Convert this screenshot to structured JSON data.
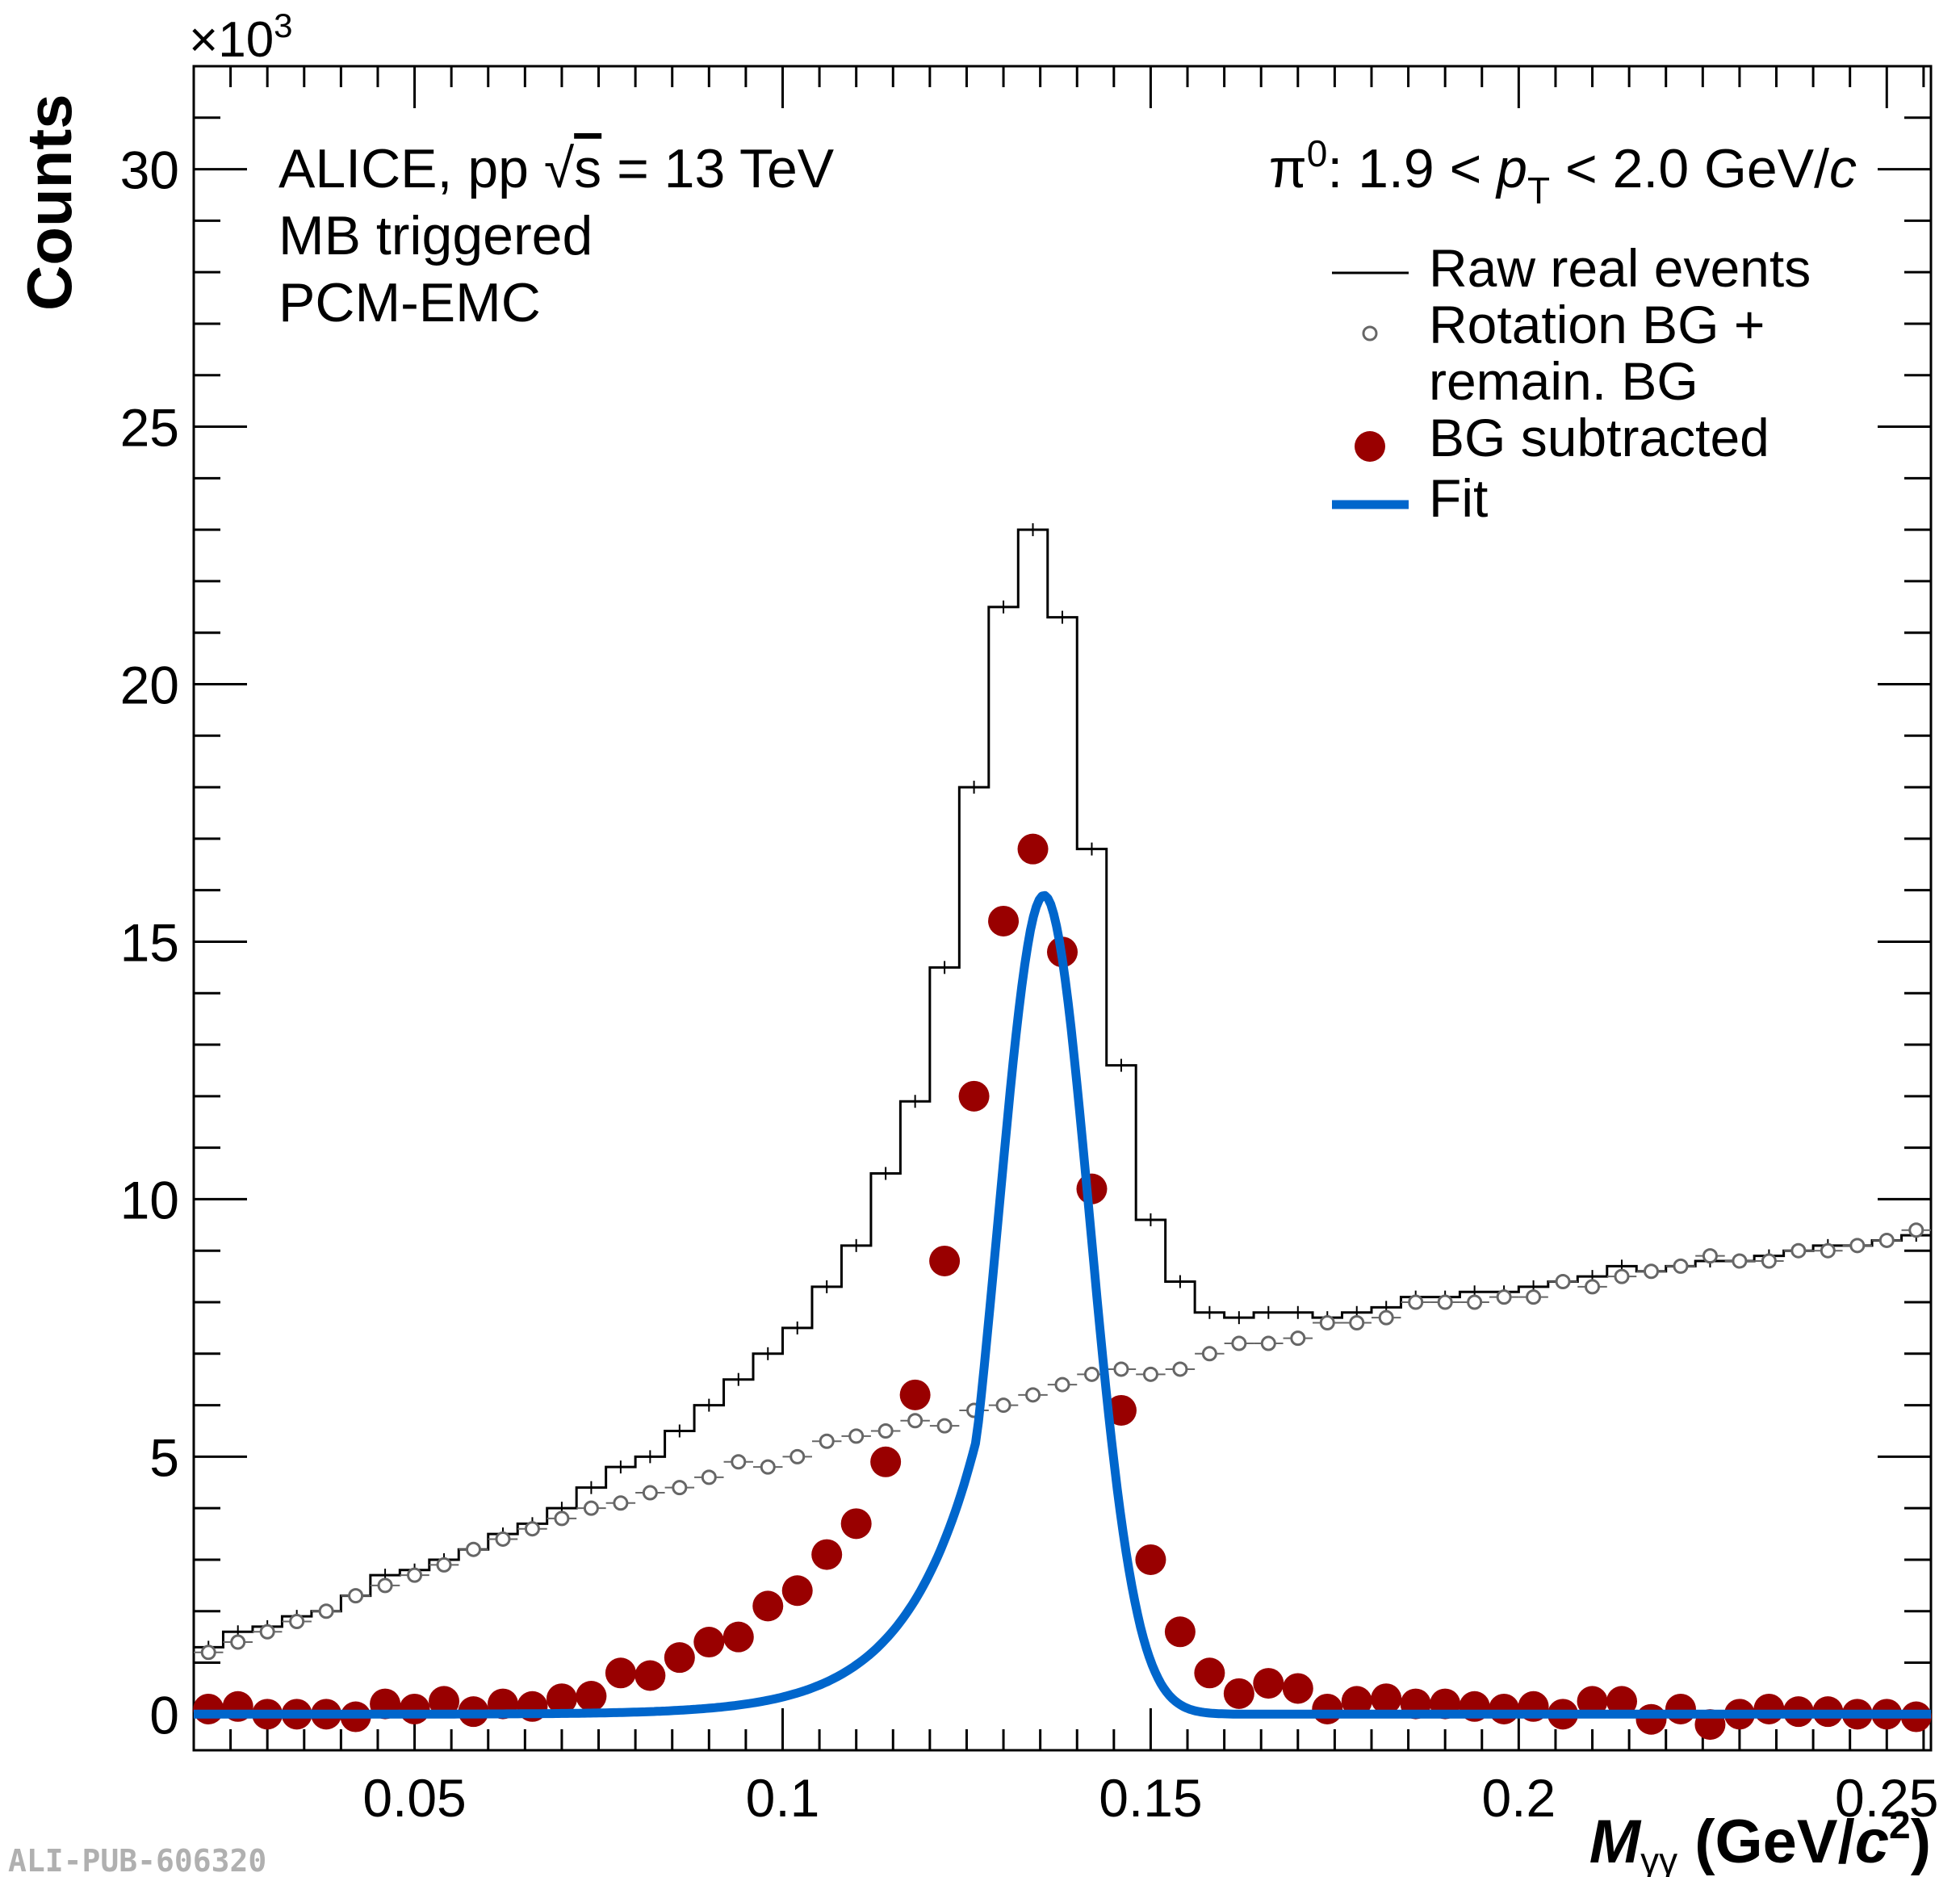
{
  "chart_data": {
    "type": "line",
    "ylabel": "Counts",
    "y_multiplier": "×10",
    "y_multiplier_exp": "3",
    "xlabel": {
      "main": "M",
      "sub": "γγ",
      "units_pre": " (GeV/",
      "units_c": "c",
      "units_exp": "2",
      "units_post": ")"
    },
    "xlim": [
      0.02,
      0.256
    ],
    "ylim": [
      -0.7,
      32.0
    ],
    "x_ticks": [
      0.05,
      0.1,
      0.15,
      0.2,
      0.25
    ],
    "x_tick_labels": [
      "0.05",
      "0.1",
      "0.15",
      "0.2",
      "0.25"
    ],
    "y_ticks": [
      0,
      5,
      10,
      15,
      20,
      25,
      30
    ],
    "y_tick_labels": [
      "0",
      "5",
      "10",
      "15",
      "20",
      "25",
      "30"
    ],
    "annotations": {
      "line1_pre": "ALICE, pp ",
      "line1_sqrt": "√",
      "line1_s": "s",
      "line1_post": " = 13 TeV",
      "line2": "MB triggered",
      "line3": "PCM-EMC",
      "kin_pi": "π",
      "kin_pi_exp": "0",
      "kin_mid": ": 1.9 < ",
      "kin_p": "p",
      "kin_sub": "T",
      "kin_post": " < 2.0 GeV/",
      "kin_c": "c"
    },
    "watermark": "ALI-PUB-606320",
    "legend": {
      "position": "top-right",
      "entries": [
        {
          "label": "Raw real events",
          "style": "line-thin",
          "color": "#000000"
        },
        {
          "label": "Rotation BG +",
          "label2": "remain. BG",
          "style": "open-circle",
          "color": "#666666"
        },
        {
          "label": "BG subtracted",
          "style": "filled-circle",
          "color": "#990000"
        },
        {
          "label": "Fit",
          "style": "line-thick",
          "color": "#0066cc"
        }
      ]
    },
    "bin_width": 0.004,
    "series": [
      {
        "name": "Raw real events",
        "x": [
          0.022,
          0.026,
          0.03,
          0.034,
          0.038,
          0.042,
          0.046,
          0.05,
          0.054,
          0.058,
          0.062,
          0.066,
          0.07,
          0.074,
          0.078,
          0.082,
          0.086,
          0.09,
          0.094,
          0.098,
          0.102,
          0.106,
          0.11,
          0.114,
          0.118,
          0.122,
          0.126,
          0.13,
          0.134,
          0.138,
          0.142,
          0.146,
          0.15,
          0.154,
          0.158,
          0.162,
          0.166,
          0.17,
          0.174,
          0.178,
          0.182,
          0.186,
          0.19,
          0.194,
          0.198,
          0.202,
          0.206,
          0.21,
          0.214,
          0.218,
          0.222,
          0.226,
          0.23,
          0.234,
          0.238,
          0.242,
          0.246,
          0.25,
          0.254
        ],
        "y": [
          1.3,
          1.6,
          1.7,
          1.9,
          2.0,
          2.3,
          2.7,
          2.8,
          3.0,
          3.2,
          3.5,
          3.7,
          4.0,
          4.4,
          4.8,
          5.0,
          5.5,
          6.0,
          6.5,
          7.0,
          7.5,
          8.3,
          9.1,
          10.5,
          11.9,
          14.5,
          18.0,
          21.5,
          23.0,
          21.3,
          16.8,
          12.6,
          9.6,
          8.4,
          7.8,
          7.7,
          7.8,
          7.8,
          7.7,
          7.8,
          7.9,
          8.1,
          8.1,
          8.2,
          8.2,
          8.3,
          8.4,
          8.5,
          8.7,
          8.6,
          8.7,
          8.8,
          8.8,
          8.9,
          9.0,
          9.1,
          9.1,
          9.2,
          9.3
        ]
      },
      {
        "name": "Rotation BG + remain. BG",
        "x": [
          0.022,
          0.026,
          0.03,
          0.034,
          0.038,
          0.042,
          0.046,
          0.05,
          0.054,
          0.058,
          0.062,
          0.066,
          0.07,
          0.074,
          0.078,
          0.082,
          0.086,
          0.09,
          0.094,
          0.098,
          0.102,
          0.106,
          0.11,
          0.114,
          0.118,
          0.122,
          0.126,
          0.13,
          0.134,
          0.138,
          0.142,
          0.146,
          0.15,
          0.154,
          0.158,
          0.162,
          0.166,
          0.17,
          0.174,
          0.178,
          0.182,
          0.186,
          0.19,
          0.194,
          0.198,
          0.202,
          0.206,
          0.21,
          0.214,
          0.218,
          0.222,
          0.226,
          0.23,
          0.234,
          0.238,
          0.242,
          0.246,
          0.25,
          0.254
        ],
        "y": [
          1.2,
          1.4,
          1.6,
          1.8,
          2.0,
          2.3,
          2.5,
          2.7,
          2.9,
          3.2,
          3.4,
          3.6,
          3.8,
          4.0,
          4.1,
          4.3,
          4.4,
          4.6,
          4.9,
          4.8,
          5.0,
          5.3,
          5.4,
          5.5,
          5.7,
          5.6,
          5.9,
          6.0,
          6.2,
          6.4,
          6.6,
          6.7,
          6.6,
          6.7,
          7.0,
          7.2,
          7.2,
          7.3,
          7.6,
          7.6,
          7.7,
          8.0,
          8.0,
          8.0,
          8.1,
          8.1,
          8.4,
          8.3,
          8.5,
          8.6,
          8.7,
          8.9,
          8.8,
          8.8,
          9.0,
          9.0,
          9.1,
          9.2,
          9.4
        ]
      },
      {
        "name": "BG subtracted",
        "x": [
          0.022,
          0.026,
          0.03,
          0.034,
          0.038,
          0.042,
          0.046,
          0.05,
          0.054,
          0.058,
          0.062,
          0.066,
          0.07,
          0.074,
          0.078,
          0.082,
          0.086,
          0.09,
          0.094,
          0.098,
          0.102,
          0.106,
          0.11,
          0.114,
          0.118,
          0.122,
          0.126,
          0.13,
          0.134,
          0.138,
          0.142,
          0.146,
          0.15,
          0.154,
          0.158,
          0.162,
          0.166,
          0.17,
          0.174,
          0.178,
          0.182,
          0.186,
          0.19,
          0.194,
          0.198,
          0.202,
          0.206,
          0.21,
          0.214,
          0.218,
          0.222,
          0.226,
          0.23,
          0.234,
          0.238,
          0.242,
          0.246,
          0.25,
          0.254
        ],
        "y": [
          0.1,
          0.15,
          0.0,
          0.0,
          0.0,
          -0.05,
          0.2,
          0.1,
          0.25,
          0.05,
          0.2,
          0.15,
          0.3,
          0.35,
          0.8,
          0.75,
          1.1,
          1.4,
          1.5,
          2.1,
          2.4,
          3.1,
          3.7,
          4.9,
          6.2,
          8.8,
          12.0,
          15.4,
          16.8,
          14.8,
          10.2,
          5.9,
          3.0,
          1.6,
          0.8,
          0.4,
          0.6,
          0.5,
          0.1,
          0.25,
          0.3,
          0.2,
          0.2,
          0.15,
          0.1,
          0.15,
          0.0,
          0.25,
          0.25,
          -0.1,
          0.1,
          -0.2,
          0.0,
          0.1,
          0.05,
          0.05,
          0.0,
          0.0,
          -0.05
        ]
      },
      {
        "name": "Fit",
        "peak": 15.9,
        "mu": 0.1355,
        "sigma": 0.0062,
        "lambda": 0.0095
      }
    ]
  }
}
